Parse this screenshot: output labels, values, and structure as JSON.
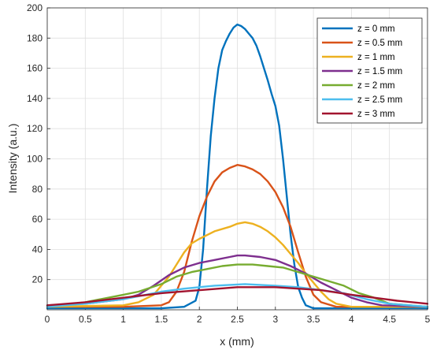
{
  "chart_data": {
    "type": "line",
    "title": "",
    "xlabel": "x (mm)",
    "ylabel": "Intensity (a.u.)",
    "xlim": [
      0,
      5
    ],
    "ylim": [
      0,
      200
    ],
    "x_ticks": [
      0,
      0.5,
      1,
      1.5,
      2,
      2.5,
      3,
      3.5,
      4,
      4.5,
      5
    ],
    "y_ticks": [
      20,
      40,
      60,
      80,
      100,
      120,
      140,
      160,
      180,
      200
    ],
    "x_tick_labels": [
      "0",
      "0.5",
      "1",
      "1.5",
      "2",
      "2.5",
      "3",
      "3.5",
      "4",
      "4.5",
      "5"
    ],
    "y_tick_labels": [
      "20",
      "40",
      "60",
      "80",
      "100",
      "120",
      "140",
      "160",
      "180",
      "200"
    ],
    "grid": true,
    "legend_position": "top-right",
    "series": [
      {
        "name": "z = 0 mm",
        "color": "#0072BD",
        "points": [
          [
            0,
            1
          ],
          [
            1.5,
            1
          ],
          [
            1.8,
            2
          ],
          [
            1.95,
            6
          ],
          [
            2.0,
            15
          ],
          [
            2.05,
            40
          ],
          [
            2.1,
            80
          ],
          [
            2.15,
            115
          ],
          [
            2.2,
            140
          ],
          [
            2.25,
            160
          ],
          [
            2.3,
            172
          ],
          [
            2.35,
            178
          ],
          [
            2.4,
            183
          ],
          [
            2.45,
            187
          ],
          [
            2.5,
            189
          ],
          [
            2.55,
            188
          ],
          [
            2.6,
            186
          ],
          [
            2.65,
            183
          ],
          [
            2.7,
            180
          ],
          [
            2.75,
            175
          ],
          [
            2.8,
            168
          ],
          [
            2.85,
            160
          ],
          [
            2.9,
            152
          ],
          [
            2.95,
            143
          ],
          [
            3.0,
            135
          ],
          [
            3.05,
            122
          ],
          [
            3.1,
            100
          ],
          [
            3.15,
            75
          ],
          [
            3.2,
            50
          ],
          [
            3.25,
            30
          ],
          [
            3.3,
            15
          ],
          [
            3.35,
            8
          ],
          [
            3.4,
            3
          ],
          [
            3.5,
            1
          ],
          [
            5,
            1
          ]
        ]
      },
      {
        "name": "z = 0.5 mm",
        "color": "#D95319",
        "points": [
          [
            0,
            2
          ],
          [
            1.0,
            2
          ],
          [
            1.5,
            3
          ],
          [
            1.6,
            5
          ],
          [
            1.7,
            12
          ],
          [
            1.8,
            25
          ],
          [
            1.9,
            45
          ],
          [
            2.0,
            62
          ],
          [
            2.1,
            75
          ],
          [
            2.2,
            85
          ],
          [
            2.3,
            91
          ],
          [
            2.4,
            94
          ],
          [
            2.5,
            96
          ],
          [
            2.6,
            95
          ],
          [
            2.7,
            93
          ],
          [
            2.8,
            90
          ],
          [
            2.9,
            85
          ],
          [
            3.0,
            78
          ],
          [
            3.1,
            68
          ],
          [
            3.2,
            55
          ],
          [
            3.3,
            38
          ],
          [
            3.4,
            22
          ],
          [
            3.5,
            10
          ],
          [
            3.6,
            5
          ],
          [
            3.8,
            2
          ],
          [
            5,
            2
          ]
        ]
      },
      {
        "name": "z = 1 mm",
        "color": "#EDB120",
        "points": [
          [
            0,
            2
          ],
          [
            1.0,
            3
          ],
          [
            1.2,
            5
          ],
          [
            1.4,
            10
          ],
          [
            1.5,
            16
          ],
          [
            1.6,
            22
          ],
          [
            1.7,
            30
          ],
          [
            1.8,
            38
          ],
          [
            1.9,
            44
          ],
          [
            2.0,
            47
          ],
          [
            2.2,
            52
          ],
          [
            2.4,
            55
          ],
          [
            2.5,
            57
          ],
          [
            2.6,
            58
          ],
          [
            2.7,
            57
          ],
          [
            2.8,
            55
          ],
          [
            2.9,
            52
          ],
          [
            3.0,
            48
          ],
          [
            3.1,
            43
          ],
          [
            3.2,
            37
          ],
          [
            3.3,
            31
          ],
          [
            3.4,
            24
          ],
          [
            3.5,
            18
          ],
          [
            3.6,
            12
          ],
          [
            3.7,
            7
          ],
          [
            3.8,
            4
          ],
          [
            4.0,
            2
          ],
          [
            5,
            2
          ]
        ]
      },
      {
        "name": "z = 1.5 mm",
        "color": "#7E2F8E",
        "points": [
          [
            0,
            3
          ],
          [
            0.5,
            4
          ],
          [
            1.0,
            7
          ],
          [
            1.2,
            10
          ],
          [
            1.4,
            16
          ],
          [
            1.6,
            23
          ],
          [
            1.8,
            28
          ],
          [
            2.0,
            31
          ],
          [
            2.2,
            33
          ],
          [
            2.4,
            35
          ],
          [
            2.5,
            36
          ],
          [
            2.6,
            36
          ],
          [
            2.8,
            35
          ],
          [
            3.0,
            33
          ],
          [
            3.2,
            29
          ],
          [
            3.4,
            24
          ],
          [
            3.6,
            18
          ],
          [
            3.8,
            13
          ],
          [
            4.0,
            8
          ],
          [
            4.2,
            5
          ],
          [
            4.4,
            3
          ],
          [
            5,
            2
          ]
        ]
      },
      {
        "name": "z = 2 mm",
        "color": "#77AC30",
        "points": [
          [
            0,
            2
          ],
          [
            0.5,
            5
          ],
          [
            1.0,
            10
          ],
          [
            1.2,
            12
          ],
          [
            1.5,
            17
          ],
          [
            1.7,
            22
          ],
          [
            1.9,
            25
          ],
          [
            2.1,
            27
          ],
          [
            2.3,
            29
          ],
          [
            2.5,
            30
          ],
          [
            2.7,
            30
          ],
          [
            2.9,
            29
          ],
          [
            3.1,
            28
          ],
          [
            3.3,
            25
          ],
          [
            3.5,
            22
          ],
          [
            3.7,
            19
          ],
          [
            3.9,
            16
          ],
          [
            4.1,
            11
          ],
          [
            4.3,
            8
          ],
          [
            4.5,
            4
          ],
          [
            5,
            2
          ]
        ]
      },
      {
        "name": "z = 2.5 mm",
        "color": "#4DBEEE",
        "points": [
          [
            0,
            2
          ],
          [
            0.5,
            4
          ],
          [
            1.0,
            7
          ],
          [
            1.2,
            9
          ],
          [
            1.5,
            12
          ],
          [
            1.8,
            14
          ],
          [
            2.0,
            15
          ],
          [
            2.2,
            16
          ],
          [
            2.4,
            16.5
          ],
          [
            2.6,
            17
          ],
          [
            2.8,
            16.5
          ],
          [
            3.0,
            16
          ],
          [
            3.3,
            15
          ],
          [
            3.6,
            13
          ],
          [
            3.9,
            11
          ],
          [
            4.2,
            7
          ],
          [
            4.5,
            4
          ],
          [
            5,
            2
          ]
        ]
      },
      {
        "name": "z = 3 mm",
        "color": "#A2142F",
        "points": [
          [
            0,
            3
          ],
          [
            0.5,
            5
          ],
          [
            1.0,
            8
          ],
          [
            1.5,
            11
          ],
          [
            2.0,
            13
          ],
          [
            2.5,
            15
          ],
          [
            2.7,
            15
          ],
          [
            3.0,
            15
          ],
          [
            3.3,
            14
          ],
          [
            3.6,
            13
          ],
          [
            4.0,
            10
          ],
          [
            4.3,
            8
          ],
          [
            4.6,
            6
          ],
          [
            5,
            4
          ]
        ]
      }
    ]
  }
}
